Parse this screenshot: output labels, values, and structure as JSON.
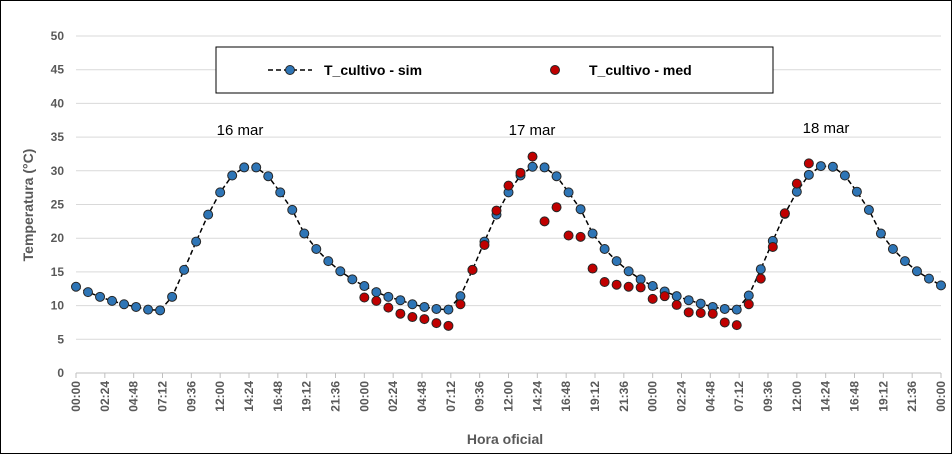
{
  "chart_data": {
    "type": "line",
    "annotations": [
      "16 mar",
      "17 mar",
      "18 mar"
    ],
    "xlabel": "Hora oficial",
    "ylabel": "Temperatura (°C)",
    "xlim": [
      0,
      72
    ],
    "ylim": [
      0,
      50
    ],
    "yticks": [
      0,
      5,
      10,
      15,
      20,
      25,
      30,
      35,
      40,
      45,
      50
    ],
    "xticks": [
      {
        "value": 0,
        "label": "00:00"
      },
      {
        "value": 2.4,
        "label": "02:24"
      },
      {
        "value": 4.8,
        "label": "04:48"
      },
      {
        "value": 7.2,
        "label": "07:12"
      },
      {
        "value": 9.6,
        "label": "09:36"
      },
      {
        "value": 12,
        "label": "12:00"
      },
      {
        "value": 14.4,
        "label": "14:24"
      },
      {
        "value": 16.8,
        "label": "16:48"
      },
      {
        "value": 19.2,
        "label": "19:12"
      },
      {
        "value": 21.6,
        "label": "21:36"
      },
      {
        "value": 24,
        "label": "00:00"
      },
      {
        "value": 26.4,
        "label": "02:24"
      },
      {
        "value": 28.8,
        "label": "04:48"
      },
      {
        "value": 31.2,
        "label": "07:12"
      },
      {
        "value": 33.6,
        "label": "09:36"
      },
      {
        "value": 36,
        "label": "12:00"
      },
      {
        "value": 38.4,
        "label": "14:24"
      },
      {
        "value": 40.8,
        "label": "16:48"
      },
      {
        "value": 43.2,
        "label": "19:12"
      },
      {
        "value": 45.6,
        "label": "21:36"
      },
      {
        "value": 48,
        "label": "00:00"
      },
      {
        "value": 50.4,
        "label": "02:24"
      },
      {
        "value": 52.8,
        "label": "04:48"
      },
      {
        "value": 55.2,
        "label": "07:12"
      },
      {
        "value": 57.6,
        "label": "09:36"
      },
      {
        "value": 60,
        "label": "12:00"
      },
      {
        "value": 62.4,
        "label": "14:24"
      },
      {
        "value": 64.8,
        "label": "16:48"
      },
      {
        "value": 67.2,
        "label": "19:12"
      },
      {
        "value": 69.6,
        "label": "21:36"
      },
      {
        "value": 72,
        "label": "00:00"
      }
    ],
    "grid": true,
    "series": [
      {
        "name": "T_cultivo - sim",
        "color": "#2e75b6",
        "line": true,
        "x": [
          0,
          1,
          2,
          3,
          4,
          5,
          6,
          7,
          8,
          9,
          10,
          11,
          12,
          13,
          14,
          15,
          16,
          17,
          18,
          19,
          20,
          21,
          22,
          23,
          24,
          25,
          26,
          27,
          28,
          29,
          30,
          31,
          32,
          33,
          34,
          35,
          36,
          37,
          38,
          39,
          40,
          41,
          42,
          43,
          44,
          45,
          46,
          47,
          48,
          49,
          50,
          51,
          52,
          53,
          54,
          55,
          56,
          57,
          58,
          59,
          60,
          61,
          62,
          63,
          64,
          65,
          66,
          67,
          68,
          69,
          70,
          71,
          72
        ],
        "values": [
          12.8,
          12.0,
          11.3,
          10.7,
          10.2,
          9.8,
          9.4,
          9.3,
          11.3,
          15.3,
          19.5,
          23.5,
          26.8,
          29.3,
          30.5,
          30.5,
          29.2,
          26.8,
          24.2,
          20.7,
          18.4,
          16.6,
          15.1,
          13.9,
          12.9,
          12.0,
          11.3,
          10.8,
          10.2,
          9.8,
          9.5,
          9.4,
          11.4,
          15.3,
          19.5,
          23.5,
          26.8,
          29.3,
          30.6,
          30.5,
          29.2,
          26.8,
          24.3,
          20.7,
          18.4,
          16.6,
          15.1,
          13.9,
          12.9,
          12.1,
          11.4,
          10.8,
          10.3,
          9.8,
          9.5,
          9.4,
          11.5,
          15.4,
          19.6,
          23.6,
          26.9,
          29.4,
          30.7,
          30.6,
          29.3,
          26.9,
          24.2,
          20.7,
          18.4,
          16.6,
          15.1,
          14.0,
          13.0
        ]
      },
      {
        "name": "T_cultivo - med",
        "color": "#c00000",
        "line": false,
        "x": [
          24,
          25,
          26,
          27,
          28,
          29,
          30,
          31,
          32,
          33,
          34,
          35,
          36,
          37,
          38,
          39,
          40,
          41,
          42,
          43,
          44,
          45,
          46,
          47,
          48,
          49,
          50,
          51,
          52,
          53,
          54,
          55,
          56,
          57,
          58,
          59,
          60,
          61
        ],
        "values": [
          11.2,
          10.7,
          9.7,
          8.8,
          8.3,
          8.0,
          7.4,
          7.0,
          10.2,
          15.3,
          19.0,
          24.1,
          27.8,
          29.7,
          32.1,
          22.5,
          24.6,
          20.4,
          20.2,
          15.5,
          13.5,
          13.1,
          12.8,
          12.7,
          11.0,
          11.4,
          10.1,
          9.0,
          8.9,
          8.8,
          7.5,
          7.1,
          10.2,
          14.0,
          18.7,
          23.7,
          28.1,
          31.1
        ]
      }
    ]
  }
}
